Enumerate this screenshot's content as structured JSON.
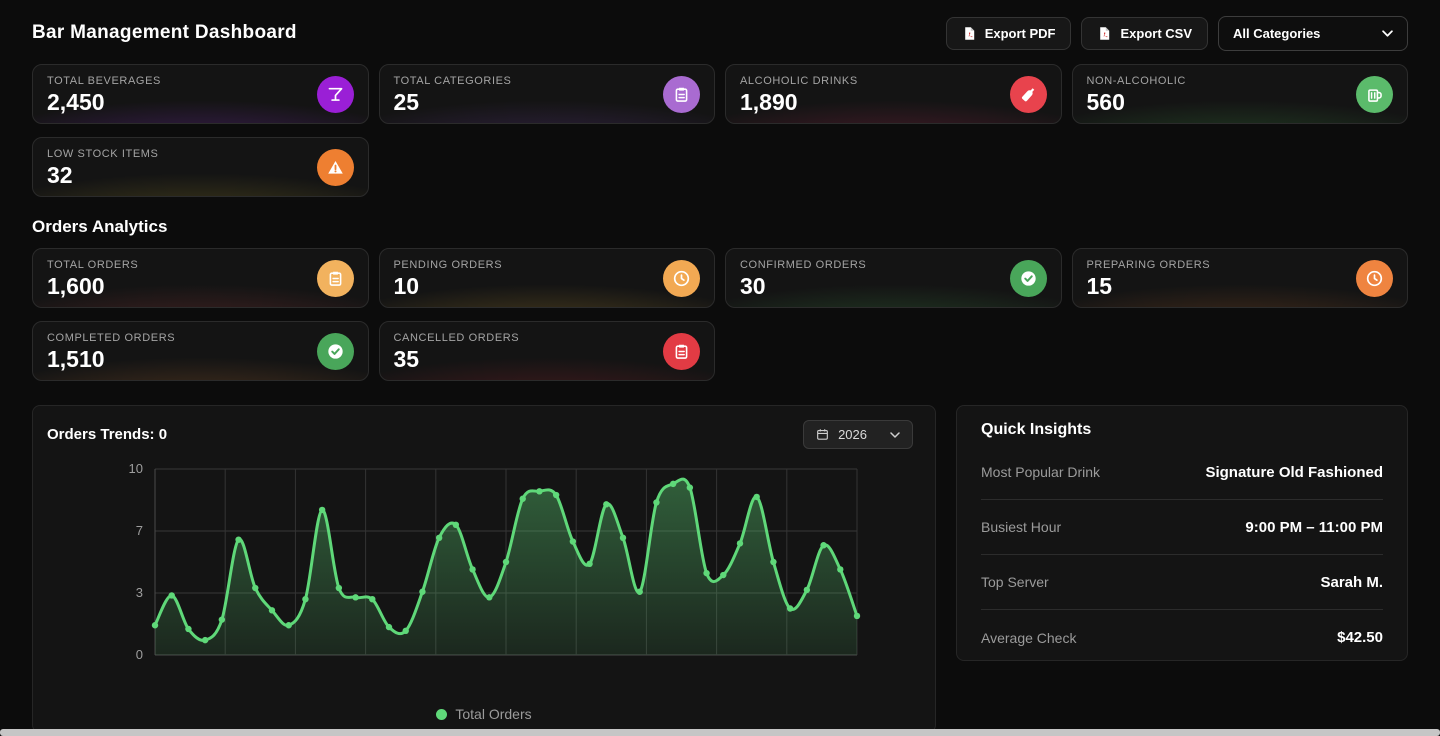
{
  "header": {
    "title": "Bar Management Dashboard",
    "export_pdf_label": "Export PDF",
    "export_csv_label": "Export CSV",
    "category_filter_value": "All Categories"
  },
  "inventory_stats": [
    {
      "label": "TOTAL BEVERAGES",
      "value": "2,450",
      "icon": "martini-glass-icon",
      "icon_bg": "#9a1fd6",
      "glow": "#8d2fd0"
    },
    {
      "label": "TOTAL CATEGORIES",
      "value": "25",
      "icon": "clipboard-icon",
      "icon_bg": "#a96bd1",
      "glow": "#6d3f9e"
    },
    {
      "label": "ALCOHOLIC DRINKS",
      "value": "1,890",
      "icon": "bottle-icon",
      "icon_bg": "#e8434d",
      "glow": "#b12a55"
    },
    {
      "label": "NON-ALCOHOLIC",
      "value": "560",
      "icon": "beer-mug-icon",
      "icon_bg": "#5bbb6b",
      "glow": "#3f9444"
    },
    {
      "label": "LOW STOCK ITEMS",
      "value": "32",
      "icon": "warning-icon",
      "icon_bg": "#ee7f31",
      "glow": "#9c8a28"
    }
  ],
  "orders_section": {
    "title": "Orders Analytics",
    "stats": [
      {
        "label": "TOTAL ORDERS",
        "value": "1,600",
        "icon": "clipboard-icon",
        "icon_bg": "#f2b25e",
        "glow": "#a33d3d"
      },
      {
        "label": "PENDING ORDERS",
        "value": "10",
        "icon": "clock-icon",
        "icon_bg": "#f2a953",
        "glow": "#b9902f"
      },
      {
        "label": "CONFIRMED ORDERS",
        "value": "30",
        "icon": "check-circle-icon",
        "icon_bg": "#49a65a",
        "glow": "#3f8f46"
      },
      {
        "label": "PREPARING ORDERS",
        "value": "15",
        "icon": "clock-icon",
        "icon_bg": "#ef8440",
        "glow": "#a85c28"
      },
      {
        "label": "COMPLETED ORDERS",
        "value": "1,510",
        "icon": "check-circle-icon",
        "icon_bg": "#49a65a",
        "glow": "#b06a31"
      },
      {
        "label": "CANCELLED ORDERS",
        "value": "35",
        "icon": "clipboard-icon",
        "icon_bg": "#e23b44",
        "glow": "#a3262e"
      }
    ]
  },
  "chart": {
    "title": "Orders Trends: 0",
    "year": "2026",
    "legend_label": "Total Orders"
  },
  "chart_data": {
    "type": "line",
    "title": "Orders Trends: 0",
    "ylim": [
      0,
      10
    ],
    "yticks": [
      0,
      3,
      7,
      10
    ],
    "x_tick_labels": [],
    "grid": true,
    "legend_position": "bottom",
    "area_fill": true,
    "markers": true,
    "line_color": "#5fd879",
    "series": [
      {
        "name": "Total Orders",
        "values": [
          1.6,
          3.2,
          1.4,
          0.8,
          1.9,
          6.2,
          3.6,
          2.4,
          1.6,
          3.0,
          7.8,
          3.6,
          3.1,
          3.0,
          1.5,
          1.3,
          3.4,
          6.3,
          7.0,
          4.6,
          3.1,
          5.0,
          8.4,
          8.8,
          8.6,
          6.1,
          4.9,
          8.1,
          6.3,
          3.4,
          8.2,
          9.2,
          9.0,
          4.4,
          4.3,
          6.0,
          8.5,
          5.0,
          2.5,
          3.5,
          5.9,
          4.6,
          2.1
        ]
      }
    ]
  },
  "insights": {
    "title": "Quick Insights",
    "rows": [
      {
        "label": "Most Popular Drink",
        "value": "Signature Old Fashioned"
      },
      {
        "label": "Busiest Hour",
        "value": "9:00 PM – 11:00 PM"
      },
      {
        "label": "Top Server",
        "value": "Sarah M."
      },
      {
        "label": "Average Check",
        "value": "$42.50"
      }
    ]
  }
}
